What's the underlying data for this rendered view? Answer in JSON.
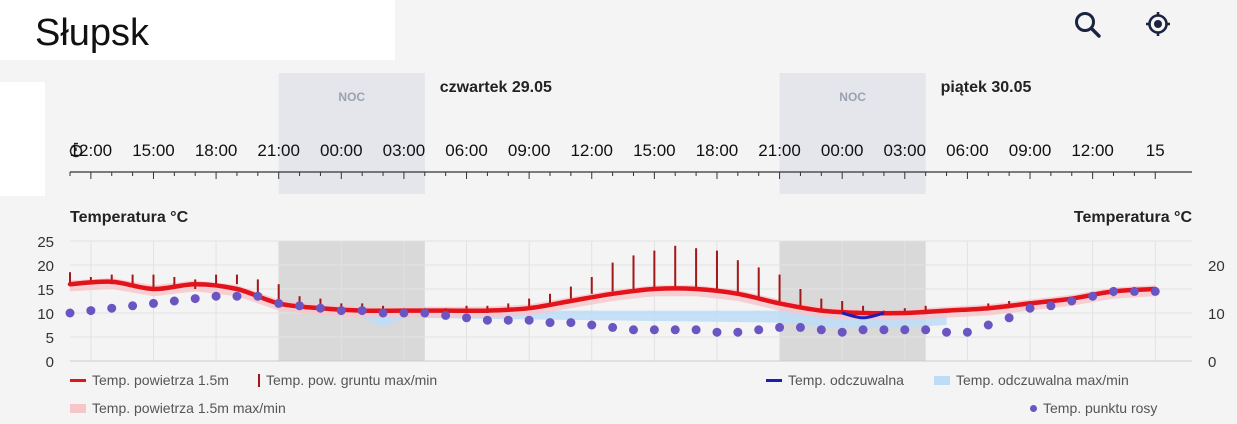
{
  "header": {
    "city": "Słupsk",
    "search_icon": "search-icon",
    "locate_icon": "crosshair-location-icon"
  },
  "timeline": {
    "day_labels": [
      {
        "text": "czwartek 29.05"
      },
      {
        "text": "piątek 30.05"
      }
    ],
    "night_label": "NOC",
    "clock_icon": "stopwatch-icon",
    "hour_labels": [
      "12:00",
      "15:00",
      "18:00",
      "21:00",
      "00:00",
      "03:00",
      "06:00",
      "09:00",
      "12:00",
      "15:00",
      "18:00",
      "21:00",
      "00:00",
      "03:00",
      "06:00",
      "09:00",
      "12:00",
      "15"
    ]
  },
  "chart_data": {
    "type": "line",
    "title_left": "Temperatura °C",
    "title_right": "Temperatura °C",
    "y_left_ticks": [
      0,
      5,
      10,
      15,
      20,
      25
    ],
    "y_right_ticks": [
      0,
      10,
      20
    ],
    "ylim": [
      0,
      25
    ],
    "x_start": "2025-05-28 11:00",
    "x_end": "2025-05-30 15:00",
    "night_periods": [
      [
        "2025-05-28 21:00",
        "2025-05-29 04:00"
      ],
      [
        "2025-05-29 21:00",
        "2025-05-30 04:00"
      ]
    ],
    "series": [
      {
        "name": "Temp. powietrza 1.5m",
        "color": "#e3131b",
        "x": [
          "2025-05-28 11:00",
          "2025-05-28 13:00",
          "2025-05-28 15:00",
          "2025-05-28 17:00",
          "2025-05-28 19:00",
          "2025-05-28 21:00",
          "2025-05-28 23:00",
          "2025-05-29 01:00",
          "2025-05-29 03:00",
          "2025-05-29 05:00",
          "2025-05-29 07:00",
          "2025-05-29 09:00",
          "2025-05-29 11:00",
          "2025-05-29 13:00",
          "2025-05-29 15:00",
          "2025-05-29 17:00",
          "2025-05-29 19:00",
          "2025-05-29 21:00",
          "2025-05-29 23:00",
          "2025-05-30 01:00",
          "2025-05-30 03:00",
          "2025-05-30 05:00",
          "2025-05-30 07:00",
          "2025-05-30 09:00",
          "2025-05-30 11:00",
          "2025-05-30 13:00",
          "2025-05-30 15:00"
        ],
        "values": [
          16,
          16.5,
          15,
          16,
          15,
          12,
          11,
          10.5,
          10.5,
          10.5,
          10.5,
          11,
          12.5,
          14,
          15,
          15,
          14,
          12,
          10.5,
          10,
          10,
          10.5,
          11,
          12,
          13,
          14.5,
          15
        ]
      },
      {
        "name": "Temp. pow. gruntu max/min",
        "color": "#a01818",
        "x": [
          "2025-05-28 11:00",
          "2025-05-28 12:00",
          "2025-05-28 13:00",
          "2025-05-28 14:00",
          "2025-05-28 15:00",
          "2025-05-28 16:00",
          "2025-05-28 17:00",
          "2025-05-28 18:00",
          "2025-05-28 19:00",
          "2025-05-28 20:00",
          "2025-05-28 21:00",
          "2025-05-28 22:00",
          "2025-05-28 23:00",
          "2025-05-29 00:00",
          "2025-05-29 01:00",
          "2025-05-29 02:00",
          "2025-05-29 03:00",
          "2025-05-29 04:00",
          "2025-05-29 05:00",
          "2025-05-29 06:00",
          "2025-05-29 07:00",
          "2025-05-29 08:00",
          "2025-05-29 09:00",
          "2025-05-29 10:00",
          "2025-05-29 11:00",
          "2025-05-29 12:00",
          "2025-05-29 13:00",
          "2025-05-29 14:00",
          "2025-05-29 15:00",
          "2025-05-29 16:00",
          "2025-05-29 17:00",
          "2025-05-29 18:00",
          "2025-05-29 19:00",
          "2025-05-29 20:00",
          "2025-05-29 21:00",
          "2025-05-29 22:00",
          "2025-05-29 23:00",
          "2025-05-30 00:00",
          "2025-05-30 01:00",
          "2025-05-30 02:00",
          "2025-05-30 03:00",
          "2025-05-30 04:00",
          "2025-05-30 05:00",
          "2025-05-30 06:00",
          "2025-05-30 07:00",
          "2025-05-30 08:00",
          "2025-05-30 09:00",
          "2025-05-30 10:00",
          "2025-05-30 11:00",
          "2025-05-30 12:00",
          "2025-05-30 13:00",
          "2025-05-30 14:00"
        ],
        "max": [
          18.5,
          17.5,
          18,
          18,
          18,
          17.5,
          17,
          18,
          18,
          17,
          16,
          13.5,
          13,
          12,
          12,
          11.5,
          11,
          11,
          11,
          11.5,
          11.5,
          12,
          13,
          14,
          15.5,
          17.5,
          20.5,
          22,
          23,
          24,
          23.5,
          23,
          21,
          19.5,
          18,
          15,
          13,
          12.5,
          11.5,
          10.5,
          11,
          11.5,
          10.5,
          11,
          12,
          12.5,
          12.5,
          12.5,
          13,
          13.5,
          14,
          14.5
        ],
        "min": [
          16,
          16,
          16,
          16,
          15,
          15,
          15,
          16,
          16,
          14,
          12,
          11.5,
          11,
          10.5,
          10,
          10,
          10,
          10,
          10,
          10,
          10,
          10.5,
          11,
          12,
          13,
          14,
          14.5,
          15,
          15,
          15,
          15,
          15,
          14,
          13,
          12,
          11,
          10.5,
          10,
          10,
          10,
          10,
          10,
          10,
          10.5,
          10.5,
          11,
          11.5,
          12,
          12.5,
          13,
          13.5,
          14
        ]
      },
      {
        "name": "Temp. powietrza 1.5m max/min",
        "color": "#f7c6cb"
      },
      {
        "name": "Temp. odczuwalna",
        "color": "#1d1db8",
        "x": [
          "2025-05-30 00:00",
          "2025-05-30 01:00",
          "2025-05-30 02:00"
        ],
        "values": [
          10,
          9,
          10
        ]
      },
      {
        "name": "Temp. odczuwalna max/min",
        "color": "#bcdcf7",
        "x": [
          "2025-05-29 01:00",
          "2025-05-29 02:00",
          "2025-05-29 03:00",
          "2025-05-29 21:00",
          "2025-05-29 23:00",
          "2025-05-30 01:00",
          "2025-05-30 03:00",
          "2025-05-30 05:00"
        ],
        "min": [
          9,
          7,
          9,
          8,
          7,
          7,
          7,
          7.5
        ]
      },
      {
        "name": "Temp. punktu rosy",
        "color": "#6a55c2",
        "x": [
          "2025-05-28 11:00",
          "2025-05-28 12:00",
          "2025-05-28 13:00",
          "2025-05-28 14:00",
          "2025-05-28 15:00",
          "2025-05-28 16:00",
          "2025-05-28 17:00",
          "2025-05-28 18:00",
          "2025-05-28 19:00",
          "2025-05-28 20:00",
          "2025-05-28 21:00",
          "2025-05-28 22:00",
          "2025-05-28 23:00",
          "2025-05-29 00:00",
          "2025-05-29 01:00",
          "2025-05-29 02:00",
          "2025-05-29 03:00",
          "2025-05-29 04:00",
          "2025-05-29 05:00",
          "2025-05-29 06:00",
          "2025-05-29 07:00",
          "2025-05-29 08:00",
          "2025-05-29 09:00",
          "2025-05-29 10:00",
          "2025-05-29 11:00",
          "2025-05-29 12:00",
          "2025-05-29 13:00",
          "2025-05-29 14:00",
          "2025-05-29 15:00",
          "2025-05-29 16:00",
          "2025-05-29 17:00",
          "2025-05-29 18:00",
          "2025-05-29 19:00",
          "2025-05-29 20:00",
          "2025-05-29 21:00",
          "2025-05-29 22:00",
          "2025-05-29 23:00",
          "2025-05-30 00:00",
          "2025-05-30 01:00",
          "2025-05-30 02:00",
          "2025-05-30 03:00",
          "2025-05-30 04:00",
          "2025-05-30 05:00",
          "2025-05-30 06:00",
          "2025-05-30 07:00",
          "2025-05-30 08:00",
          "2025-05-30 09:00",
          "2025-05-30 10:00",
          "2025-05-30 11:00",
          "2025-05-30 12:00",
          "2025-05-30 13:00",
          "2025-05-30 14:00",
          "2025-05-30 15:00"
        ],
        "values": [
          10,
          10.5,
          11,
          11.5,
          12,
          12.5,
          13,
          13.5,
          13.5,
          13.5,
          12,
          11.5,
          11,
          10.5,
          10.5,
          10,
          10,
          10,
          9.5,
          9,
          8.5,
          8.5,
          8.5,
          8,
          8,
          7.5,
          7,
          6.5,
          6.5,
          6.5,
          6.5,
          6,
          6,
          6.5,
          7,
          7,
          6.5,
          6,
          6.5,
          6.5,
          6.5,
          6.5,
          6,
          6,
          7.5,
          9,
          11,
          11.5,
          12.5,
          13.5,
          14.5,
          14.5,
          14.5
        ]
      }
    ],
    "legend": [
      "Temp. powietrza 1.5m",
      "Temp. pow. gruntu max/min",
      "Temp. powietrza 1.5m max/min",
      "Temp. odczuwalna",
      "Temp. odczuwalna max/min",
      "Temp. punktu rosy"
    ]
  }
}
